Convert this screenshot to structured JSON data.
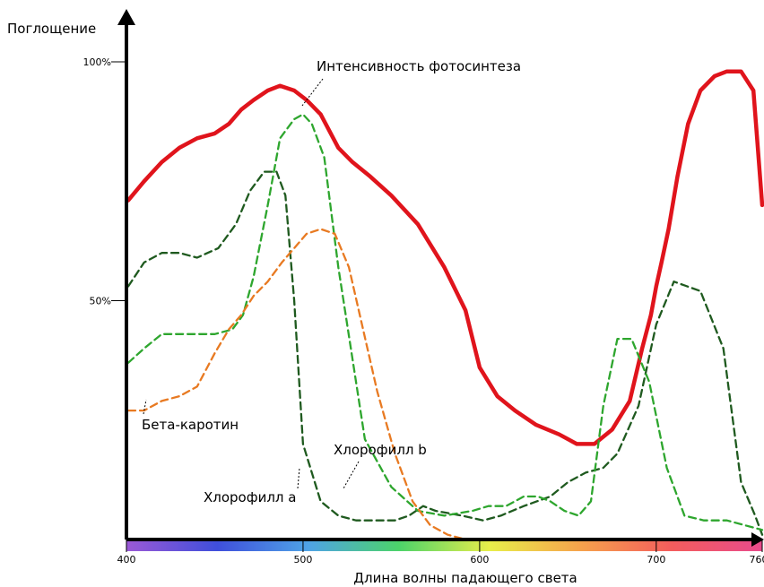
{
  "chart_data": {
    "type": "line",
    "title": "",
    "ylabel": "Поглощение",
    "xlabel": "Длина волны падающего света",
    "xlim": [
      400,
      760
    ],
    "ylim": [
      0,
      100
    ],
    "x_ticks": [
      400,
      500,
      600,
      700,
      760
    ],
    "y_ticks": [
      {
        "value": 50,
        "label": "50%"
      },
      {
        "value": 100,
        "label": "100%"
      }
    ],
    "grid": false,
    "spectrum_bar": [
      "#9b59d6",
      "#3f4fdb",
      "#4fa3e6",
      "#4cd36a",
      "#e8ee4a",
      "#f6a24c",
      "#f45d5d",
      "#e84b8c"
    ],
    "series": [
      {
        "name": "Интенсивность фотосинтеза",
        "color": "#e0141c",
        "style": "solid",
        "x": [
          401,
          410,
          420,
          430,
          440,
          450,
          458,
          465,
          472,
          480,
          487,
          495,
          502,
          510,
          520,
          528,
          538,
          550,
          565,
          580,
          592,
          600,
          610,
          620,
          632,
          645,
          655,
          665,
          675,
          685,
          692,
          697,
          700,
          703,
          707,
          712,
          718,
          725,
          733,
          740,
          748,
          755,
          760
        ],
        "y": [
          71,
          75,
          79,
          82,
          84,
          85,
          87,
          90,
          92,
          94,
          95,
          94,
          92,
          89,
          82,
          79,
          76,
          72,
          66,
          57,
          48,
          36,
          30,
          27,
          24,
          22,
          20,
          20,
          23,
          29,
          40,
          47,
          53,
          58,
          65,
          76,
          87,
          94,
          97,
          98,
          98,
          94,
          70
        ]
      },
      {
        "name": "Хлорофилл a",
        "color": "#1f5a1f",
        "style": "dashed",
        "x": [
          401,
          410,
          420,
          430,
          440,
          452,
          462,
          470,
          478,
          485,
          490,
          495,
          500,
          510,
          520,
          530,
          540,
          552,
          560,
          568,
          575,
          590,
          602,
          612,
          625,
          640,
          650,
          660,
          670,
          678,
          690,
          700,
          710,
          725,
          738,
          748,
          756,
          760
        ],
        "y": [
          53,
          58,
          60,
          60,
          59,
          61,
          66,
          73,
          77,
          77,
          72,
          50,
          20,
          8,
          5,
          4,
          4,
          4,
          5,
          7,
          6,
          5,
          4,
          5,
          7,
          9,
          12,
          14,
          15,
          18,
          28,
          45,
          54,
          52,
          40,
          12,
          5,
          1
        ]
      },
      {
        "name": "Хлорофилл b",
        "color": "#2ea62e",
        "style": "dashed",
        "x": [
          401,
          410,
          420,
          430,
          440,
          450,
          460,
          466,
          472,
          480,
          487,
          495,
          500,
          505,
          512,
          520,
          535,
          550,
          565,
          580,
          596,
          605,
          615,
          625,
          633,
          640,
          648,
          656,
          663,
          670,
          678,
          686,
          696,
          706,
          716,
          727,
          740,
          760
        ],
        "y": [
          37,
          40,
          43,
          43,
          43,
          43,
          44,
          47,
          55,
          70,
          84,
          88,
          89,
          87,
          80,
          57,
          21,
          11,
          6,
          5,
          6,
          7,
          7,
          9,
          9,
          8,
          6,
          5,
          8,
          28,
          42,
          42,
          33,
          15,
          5,
          4,
          4,
          2
        ]
      },
      {
        "name": "Бета-каротин",
        "color": "#e87a22",
        "style": "dashed",
        "x": [
          401,
          410,
          420,
          430,
          440,
          450,
          458,
          465,
          472,
          480,
          488,
          495,
          502,
          510,
          518,
          526,
          534,
          542,
          552,
          562,
          572,
          582,
          592,
          602
        ],
        "y": [
          27,
          27,
          29,
          30,
          32,
          39,
          44,
          47,
          51,
          54,
          58,
          61,
          64,
          65,
          64,
          57,
          44,
          31,
          18,
          8,
          3,
          1,
          0,
          0
        ]
      }
    ],
    "annotations": [
      {
        "text": "Интенсивность фотосинтеза",
        "series": "Интенсивность фотосинтеза"
      },
      {
        "text": "Хлорофилл b",
        "series": "Хлорофилл b"
      },
      {
        "text": "Хлорофилл a",
        "series": "Хлорофилл a"
      },
      {
        "text": "Бета-каротин",
        "series": "Бета-каротин"
      }
    ]
  }
}
